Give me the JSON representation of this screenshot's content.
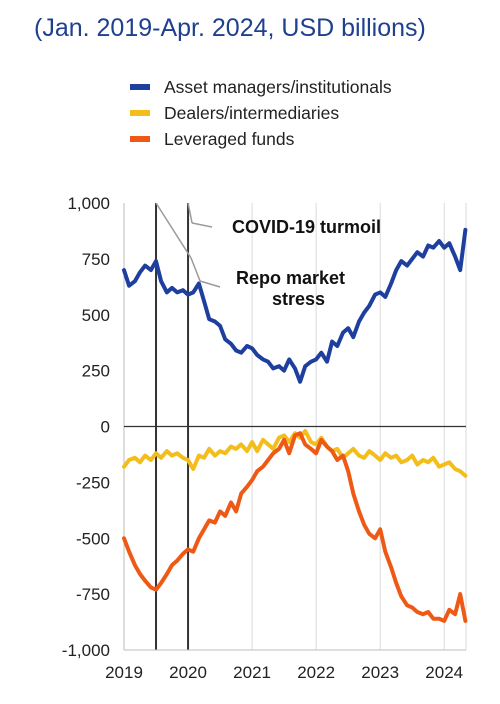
{
  "header": {
    "subtitle": "(Jan. 2019-Apr. 2024, USD billions)"
  },
  "colors": {
    "asset_managers": "#1f3f9f",
    "dealers": "#f3bd1c",
    "leveraged": "#ee5a16",
    "subtitle": "#1f3f8f",
    "event_line": "#333333",
    "annotation_leader": "#9a9a9a"
  },
  "chart_data": {
    "type": "line",
    "title": "",
    "xlabel": "",
    "ylabel": "",
    "ylim": [
      -1000,
      1000
    ],
    "xlim": [
      2019.0,
      2024.34
    ],
    "yticks": [
      1000,
      750,
      500,
      250,
      0,
      -250,
      -500,
      -750,
      -1000
    ],
    "ytick_labels": [
      "1,000",
      "750",
      "500",
      "250",
      "0",
      "-250",
      "-500",
      "-750",
      "-1,000"
    ],
    "xticks": [
      2019,
      2020,
      2021,
      2022,
      2023,
      2024
    ],
    "xtick_labels": [
      "2019",
      "2020",
      "2021",
      "2022",
      "2023",
      "2024"
    ],
    "grid": "vertical",
    "legend": "top",
    "series": [
      {
        "name": "Asset managers/institutionals",
        "color": "#1f3f9f",
        "x": [
          2019.0,
          2019.08,
          2019.17,
          2019.25,
          2019.33,
          2019.42,
          2019.5,
          2019.58,
          2019.67,
          2019.75,
          2019.83,
          2019.92,
          2020.0,
          2020.08,
          2020.17,
          2020.25,
          2020.33,
          2020.42,
          2020.5,
          2020.58,
          2020.67,
          2020.75,
          2020.83,
          2020.92,
          2021.0,
          2021.08,
          2021.17,
          2021.25,
          2021.33,
          2021.42,
          2021.5,
          2021.58,
          2021.67,
          2021.75,
          2021.83,
          2021.92,
          2022.0,
          2022.08,
          2022.17,
          2022.25,
          2022.33,
          2022.42,
          2022.5,
          2022.58,
          2022.67,
          2022.75,
          2022.83,
          2022.92,
          2023.0,
          2023.08,
          2023.17,
          2023.25,
          2023.33,
          2023.42,
          2023.5,
          2023.58,
          2023.67,
          2023.75,
          2023.83,
          2023.92,
          2024.0,
          2024.08,
          2024.17,
          2024.25,
          2024.33
        ],
        "y": [
          700,
          630,
          650,
          690,
          720,
          700,
          740,
          650,
          600,
          620,
          600,
          610,
          590,
          600,
          640,
          560,
          480,
          470,
          450,
          390,
          370,
          340,
          330,
          360,
          350,
          320,
          300,
          290,
          260,
          270,
          250,
          300,
          260,
          200,
          270,
          290,
          300,
          330,
          290,
          380,
          360,
          420,
          440,
          400,
          470,
          510,
          540,
          590,
          600,
          580,
          640,
          700,
          740,
          720,
          750,
          780,
          760,
          810,
          800,
          830,
          800,
          820,
          760,
          700,
          880
        ]
      },
      {
        "name": "Dealers/intermediaries",
        "color": "#f3bd1c",
        "x": [
          2019.0,
          2019.08,
          2019.17,
          2019.25,
          2019.33,
          2019.42,
          2019.5,
          2019.58,
          2019.67,
          2019.75,
          2019.83,
          2019.92,
          2020.0,
          2020.08,
          2020.17,
          2020.25,
          2020.33,
          2020.42,
          2020.5,
          2020.58,
          2020.67,
          2020.75,
          2020.83,
          2020.92,
          2021.0,
          2021.08,
          2021.17,
          2021.25,
          2021.33,
          2021.42,
          2021.5,
          2021.58,
          2021.67,
          2021.75,
          2021.83,
          2021.92,
          2022.0,
          2022.08,
          2022.17,
          2022.25,
          2022.33,
          2022.42,
          2022.5,
          2022.58,
          2022.67,
          2022.75,
          2022.83,
          2022.92,
          2023.0,
          2023.08,
          2023.17,
          2023.25,
          2023.33,
          2023.42,
          2023.5,
          2023.58,
          2023.67,
          2023.75,
          2023.83,
          2023.92,
          2024.0,
          2024.08,
          2024.17,
          2024.25,
          2024.33
        ],
        "y": [
          -180,
          -150,
          -140,
          -160,
          -130,
          -150,
          -120,
          -140,
          -110,
          -130,
          -120,
          -140,
          -150,
          -190,
          -130,
          -140,
          -100,
          -130,
          -110,
          -120,
          -90,
          -100,
          -80,
          -110,
          -70,
          -110,
          -60,
          -80,
          -100,
          -50,
          -40,
          -70,
          -30,
          -50,
          -20,
          -70,
          -80,
          -50,
          -90,
          -110,
          -100,
          -140,
          -120,
          -100,
          -130,
          -140,
          -110,
          -130,
          -150,
          -120,
          -140,
          -130,
          -160,
          -150,
          -130,
          -170,
          -150,
          -160,
          -140,
          -180,
          -170,
          -160,
          -190,
          -200,
          -220
        ]
      },
      {
        "name": "Leveraged funds",
        "color": "#ee5a16",
        "x": [
          2019.0,
          2019.08,
          2019.17,
          2019.25,
          2019.33,
          2019.42,
          2019.5,
          2019.58,
          2019.67,
          2019.75,
          2019.83,
          2019.92,
          2020.0,
          2020.08,
          2020.17,
          2020.25,
          2020.33,
          2020.42,
          2020.5,
          2020.58,
          2020.67,
          2020.75,
          2020.83,
          2020.92,
          2021.0,
          2021.08,
          2021.17,
          2021.25,
          2021.33,
          2021.42,
          2021.5,
          2021.58,
          2021.67,
          2021.75,
          2021.83,
          2021.92,
          2022.0,
          2022.08,
          2022.17,
          2022.25,
          2022.33,
          2022.42,
          2022.5,
          2022.58,
          2022.67,
          2022.75,
          2022.83,
          2022.92,
          2023.0,
          2023.08,
          2023.17,
          2023.25,
          2023.33,
          2023.42,
          2023.5,
          2023.58,
          2023.67,
          2023.75,
          2023.83,
          2023.92,
          2024.0,
          2024.08,
          2024.17,
          2024.25,
          2024.33
        ],
        "y": [
          -500,
          -560,
          -620,
          -660,
          -690,
          -720,
          -730,
          -700,
          -660,
          -620,
          -600,
          -570,
          -550,
          -560,
          -500,
          -460,
          -420,
          -430,
          -380,
          -400,
          -340,
          -380,
          -300,
          -270,
          -240,
          -200,
          -180,
          -150,
          -120,
          -100,
          -60,
          -120,
          -40,
          -30,
          -80,
          -100,
          -120,
          -60,
          -90,
          -110,
          -150,
          -130,
          -200,
          -300,
          -380,
          -440,
          -480,
          -500,
          -460,
          -560,
          -630,
          -700,
          -760,
          -800,
          -810,
          -830,
          -840,
          -830,
          -860,
          -860,
          -870,
          -820,
          -840,
          -750,
          -870
        ]
      }
    ],
    "events": [
      {
        "x": 2019.5,
        "label": ""
      },
      {
        "x": 2020.0,
        "label": ""
      }
    ],
    "annotations": [
      {
        "label": "COVID-19 turmoil",
        "event_index": 1
      },
      {
        "label": "Repo market stress",
        "event_index": 0
      }
    ]
  }
}
